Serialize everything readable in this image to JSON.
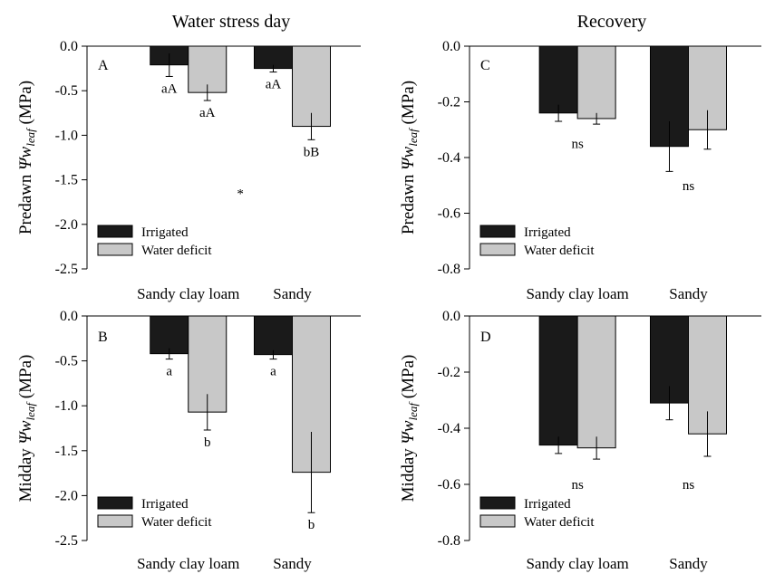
{
  "figure": {
    "column_titles": [
      "Water stress day",
      "Recovery"
    ],
    "legend": [
      "Irrigated",
      "Water deficit"
    ],
    "colors": {
      "irrigated": "#1a1a1a",
      "deficit": "#c8c8c8"
    }
  },
  "chart_data": [
    {
      "id": "A",
      "type": "bar",
      "panel_label": "A",
      "ylabel": {
        "pre": "Predawn ",
        "psi": "Ψw",
        "sub": "leaf",
        "post": " (MPa)"
      },
      "ylim": [
        -2.5,
        0
      ],
      "yticks": [
        0,
        -0.5,
        -1,
        -1.5,
        -2,
        -2.5
      ],
      "ytick_labels": [
        "0.0",
        "-0.5",
        "-1.0",
        "-1.5",
        "-2.0",
        "-2.5"
      ],
      "categories": [
        "Sandy clay loam",
        "Sandy"
      ],
      "series": [
        {
          "name": "Irrigated",
          "values": [
            -0.21,
            -0.25
          ],
          "errors": [
            0.13,
            0.04
          ],
          "labels": [
            "aA",
            "aA"
          ]
        },
        {
          "name": "Water deficit",
          "values": [
            -0.52,
            -0.9
          ],
          "errors": [
            0.09,
            0.15
          ],
          "labels": [
            "aA",
            "bB"
          ]
        }
      ],
      "annotations": [
        {
          "text": "*",
          "x": 0.5,
          "y": -1.6
        }
      ],
      "legend_position": "bottom-left"
    },
    {
      "id": "B",
      "type": "bar",
      "panel_label": "B",
      "ylabel": {
        "pre": "Midday ",
        "psi": "Ψw",
        "sub": "leaf",
        "post": " (MPa)"
      },
      "ylim": [
        -2.5,
        0
      ],
      "yticks": [
        0,
        -0.5,
        -1,
        -1.5,
        -2,
        -2.5
      ],
      "ytick_labels": [
        "0.0",
        "-0.5",
        "-1.0",
        "-1.5",
        "-2.0",
        "-2.5"
      ],
      "categories": [
        "Sandy clay loam",
        "Sandy"
      ],
      "series": [
        {
          "name": "Irrigated",
          "values": [
            -0.42,
            -0.43
          ],
          "errors": [
            0.06,
            0.05
          ],
          "labels": [
            "a",
            "a"
          ]
        },
        {
          "name": "Water deficit",
          "values": [
            -1.07,
            -1.74
          ],
          "errors": [
            0.2,
            0.45
          ],
          "labels": [
            "b",
            "b"
          ]
        }
      ],
      "annotations": [],
      "legend_position": "bottom-left"
    },
    {
      "id": "C",
      "type": "bar",
      "panel_label": "C",
      "ylabel": {
        "pre": "Predawn ",
        "psi": "Ψw",
        "sub": "leaf",
        "post": " (MPa)"
      },
      "ylim": [
        -0.8,
        0
      ],
      "yticks": [
        0,
        -0.2,
        -0.4,
        -0.6,
        -0.8
      ],
      "ytick_labels": [
        "0.0",
        "-0.2",
        "-0.4",
        "-0.6",
        "-0.8"
      ],
      "categories": [
        "Sandy clay loam",
        "Sandy"
      ],
      "series": [
        {
          "name": "Irrigated",
          "values": [
            -0.24,
            -0.36
          ],
          "errors": [
            0.03,
            0.09
          ],
          "labels": [
            "",
            ""
          ]
        },
        {
          "name": "Water deficit",
          "values": [
            -0.26,
            -0.3
          ],
          "errors": [
            0.02,
            0.07
          ],
          "labels": [
            "",
            ""
          ]
        }
      ],
      "annotations": [
        {
          "text": "ns",
          "x": 0,
          "y": -0.35
        },
        {
          "text": "ns",
          "x": 1,
          "y": -0.5
        }
      ],
      "legend_position": "bottom-left"
    },
    {
      "id": "D",
      "type": "bar",
      "panel_label": "D",
      "ylabel": {
        "pre": "Midday ",
        "psi": "Ψw",
        "sub": "leaf",
        "post": " (MPa)"
      },
      "ylim": [
        -0.8,
        0
      ],
      "yticks": [
        0,
        -0.2,
        -0.4,
        -0.6,
        -0.8
      ],
      "ytick_labels": [
        "0.0",
        "-0.2",
        "-0.4",
        "-0.6",
        "-0.8"
      ],
      "categories": [
        "Sandy clay loam",
        "Sandy"
      ],
      "series": [
        {
          "name": "Irrigated",
          "values": [
            -0.46,
            -0.31
          ],
          "errors": [
            0.03,
            0.06
          ],
          "labels": [
            "",
            ""
          ]
        },
        {
          "name": "Water deficit",
          "values": [
            -0.47,
            -0.42
          ],
          "errors": [
            0.04,
            0.08
          ],
          "labels": [
            "",
            ""
          ]
        }
      ],
      "annotations": [
        {
          "text": "ns",
          "x": 0,
          "y": -0.6
        },
        {
          "text": "ns",
          "x": 1,
          "y": -0.6
        }
      ],
      "legend_position": "bottom-left"
    }
  ]
}
